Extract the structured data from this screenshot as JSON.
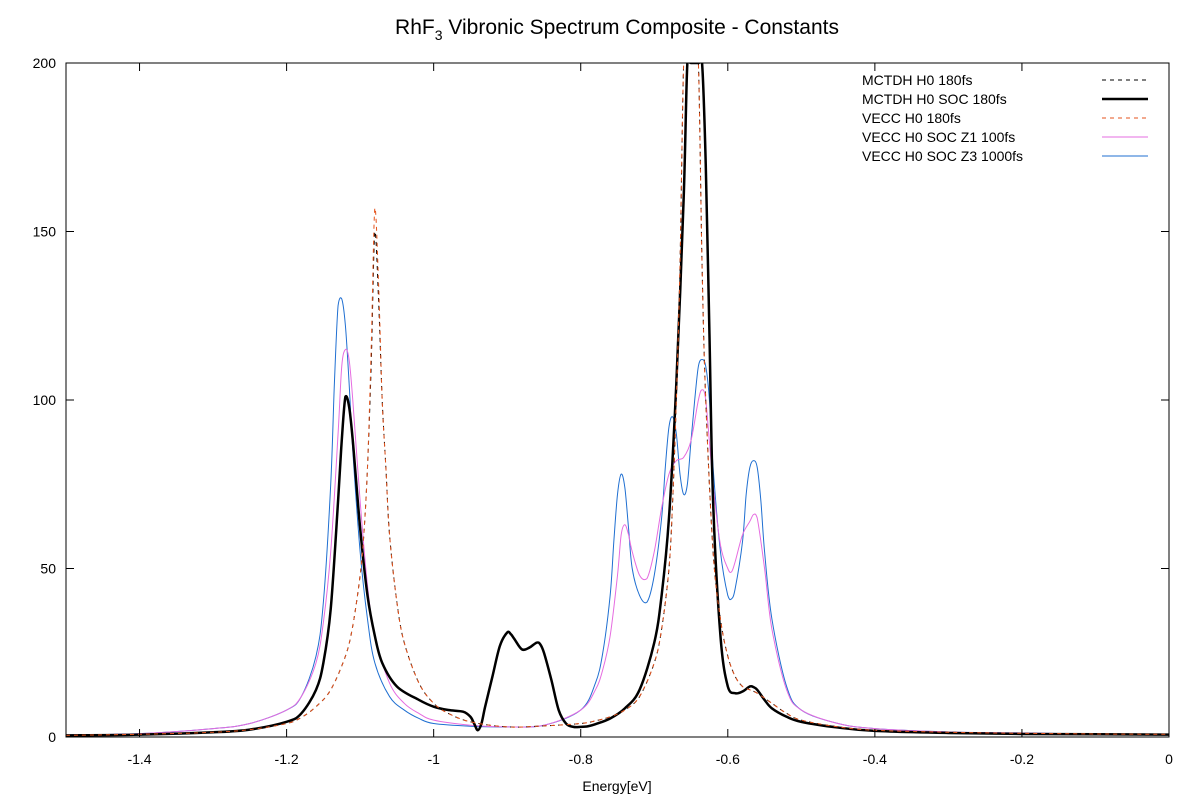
{
  "chart_data": {
    "type": "line",
    "title": "RhF",
    "title_subscript": "3",
    "title_suffix": " Vibronic Spectrum Composite - Constants",
    "xlabel": "Energy[eV]",
    "ylabel": "",
    "xlim": [
      -1.5,
      0
    ],
    "ylim": [
      0,
      200
    ],
    "x_ticks": [
      -1.4,
      -1.2,
      -1,
      -0.8,
      -0.6,
      -0.4,
      -0.2,
      0
    ],
    "x_tick_labels": [
      "-1.4",
      "-1.2",
      "-1",
      "-0.8",
      "-0.6",
      "-0.4",
      "-0.2",
      "0"
    ],
    "y_ticks": [
      0,
      50,
      100,
      150,
      200
    ],
    "y_tick_labels": [
      "0",
      "50",
      "100",
      "150",
      "200"
    ],
    "grid": false,
    "legend_position": "top-right",
    "baseline_dotted_at": 0,
    "series": [
      {
        "name": "MCTDH H0 180fs",
        "color": "#000000",
        "dash": "dashed",
        "width": "thin",
        "x": [
          -1.5,
          -1.4,
          -1.3,
          -1.25,
          -1.2,
          -1.18,
          -1.16,
          -1.14,
          -1.12,
          -1.11,
          -1.1,
          -1.095,
          -1.09,
          -1.085,
          -1.08,
          -1.075,
          -1.07,
          -1.065,
          -1.06,
          -1.05,
          -1.04,
          -1.02,
          -1.0,
          -0.98,
          -0.95,
          -0.9,
          -0.85,
          -0.8,
          -0.78,
          -0.76,
          -0.74,
          -0.72,
          -0.7,
          -0.69,
          -0.68,
          -0.675,
          -0.67,
          -0.665,
          -0.66,
          -0.655,
          -0.65,
          -0.645,
          -0.64,
          -0.635,
          -0.63,
          -0.62,
          -0.61,
          -0.6,
          -0.59,
          -0.58,
          -0.57,
          -0.56,
          -0.54,
          -0.52,
          -0.5,
          -0.45,
          -0.4,
          -0.3,
          -0.2,
          -0.1,
          0
        ],
        "y": [
          0.5,
          0.8,
          1.4,
          2.2,
          4,
          5.8,
          9,
          14,
          24,
          33,
          48,
          60,
          80,
          110,
          150,
          130,
          100,
          80,
          60,
          40,
          28,
          16,
          10,
          7,
          4.5,
          3,
          3.3,
          4,
          4.8,
          6,
          8,
          12,
          22,
          32,
          50,
          70,
          100,
          140,
          200,
          200,
          200,
          200,
          200,
          140,
          100,
          55,
          35,
          24,
          18,
          15,
          14,
          13,
          10,
          7,
          5,
          3,
          2,
          1.4,
          1.1,
          0.9,
          0.8
        ]
      },
      {
        "name": "MCTDH H0 SOC 180fs",
        "color": "#000000",
        "dash": "solid",
        "width": "thick",
        "x": [
          -1.5,
          -1.4,
          -1.3,
          -1.25,
          -1.2,
          -1.18,
          -1.16,
          -1.15,
          -1.14,
          -1.13,
          -1.125,
          -1.12,
          -1.115,
          -1.11,
          -1.1,
          -1.09,
          -1.08,
          -1.07,
          -1.05,
          -1.02,
          -1.0,
          -0.98,
          -0.96,
          -0.95,
          -0.945,
          -0.94,
          -0.935,
          -0.93,
          -0.92,
          -0.91,
          -0.9,
          -0.895,
          -0.89,
          -0.88,
          -0.87,
          -0.86,
          -0.855,
          -0.85,
          -0.84,
          -0.83,
          -0.82,
          -0.81,
          -0.8,
          -0.79,
          -0.78,
          -0.76,
          -0.74,
          -0.72,
          -0.7,
          -0.69,
          -0.68,
          -0.67,
          -0.66,
          -0.655,
          -0.65,
          -0.645,
          -0.64,
          -0.635,
          -0.63,
          -0.625,
          -0.62,
          -0.61,
          -0.6,
          -0.59,
          -0.58,
          -0.57,
          -0.565,
          -0.56,
          -0.55,
          -0.54,
          -0.52,
          -0.5,
          -0.45,
          -0.4,
          -0.3,
          -0.2,
          -0.1,
          0
        ],
        "y": [
          0.5,
          0.7,
          1.4,
          2.2,
          4.5,
          7,
          14,
          22,
          38,
          70,
          88,
          101,
          98,
          88,
          62,
          42,
          30,
          22,
          15,
          11,
          9,
          8,
          7.5,
          6,
          4,
          2,
          4,
          9,
          18,
          27,
          31,
          30.5,
          29,
          26,
          26.5,
          28,
          27.5,
          25,
          17,
          8,
          4,
          3,
          3,
          3.2,
          3.8,
          5.5,
          8.5,
          14,
          28,
          42,
          65,
          105,
          160,
          200,
          200,
          200,
          200,
          200,
          170,
          120,
          70,
          30,
          15,
          13,
          13.5,
          15,
          14.8,
          14,
          11,
          8.5,
          6,
          4.5,
          2.8,
          1.8,
          1.2,
          0.9,
          0.8,
          0.7
        ]
      },
      {
        "name": "VECC    H0 180fs",
        "color": "#e4531c",
        "dash": "dashed",
        "width": "thin",
        "x": [
          -1.5,
          -1.4,
          -1.3,
          -1.25,
          -1.2,
          -1.18,
          -1.16,
          -1.14,
          -1.12,
          -1.11,
          -1.1,
          -1.095,
          -1.09,
          -1.085,
          -1.08,
          -1.075,
          -1.07,
          -1.065,
          -1.06,
          -1.05,
          -1.04,
          -1.02,
          -1.0,
          -0.98,
          -0.95,
          -0.9,
          -0.85,
          -0.8,
          -0.78,
          -0.76,
          -0.74,
          -0.72,
          -0.7,
          -0.69,
          -0.68,
          -0.675,
          -0.67,
          -0.665,
          -0.66,
          -0.655,
          -0.65,
          -0.645,
          -0.64,
          -0.635,
          -0.63,
          -0.62,
          -0.61,
          -0.6,
          -0.59,
          -0.58,
          -0.57,
          -0.56,
          -0.54,
          -0.52,
          -0.5,
          -0.45,
          -0.4,
          -0.3,
          -0.2,
          -0.1,
          0
        ],
        "y": [
          0.5,
          0.8,
          1.4,
          2.2,
          4,
          5.8,
          9,
          14,
          24,
          33,
          48,
          60,
          80,
          115,
          157,
          135,
          100,
          80,
          60,
          40,
          28,
          16,
          10,
          7,
          4.5,
          3,
          3.3,
          4,
          4.8,
          6,
          8,
          12,
          22,
          32,
          50,
          70,
          100,
          140,
          200,
          200,
          200,
          200,
          200,
          140,
          100,
          55,
          35,
          24,
          18,
          15,
          14,
          13,
          10,
          7,
          5,
          3,
          2,
          1.4,
          1.1,
          0.9,
          0.8
        ]
      },
      {
        "name": "VECC    H0 SOC Z1 100fs",
        "color": "#e66ce0",
        "dash": "solid",
        "width": "thin",
        "x": [
          -1.5,
          -1.4,
          -1.3,
          -1.25,
          -1.2,
          -1.18,
          -1.16,
          -1.15,
          -1.14,
          -1.13,
          -1.125,
          -1.12,
          -1.115,
          -1.11,
          -1.1,
          -1.09,
          -1.08,
          -1.06,
          -1.04,
          -1.02,
          -1.0,
          -0.95,
          -0.9,
          -0.85,
          -0.8,
          -0.78,
          -0.77,
          -0.76,
          -0.75,
          -0.745,
          -0.74,
          -0.735,
          -0.73,
          -0.72,
          -0.71,
          -0.7,
          -0.69,
          -0.68,
          -0.67,
          -0.66,
          -0.65,
          -0.64,
          -0.635,
          -0.63,
          -0.62,
          -0.61,
          -0.6,
          -0.595,
          -0.59,
          -0.58,
          -0.57,
          -0.565,
          -0.56,
          -0.55,
          -0.54,
          -0.52,
          -0.5,
          -0.45,
          -0.4,
          -0.3,
          -0.2,
          -0.1,
          0
        ],
        "y": [
          0.6,
          1,
          2.5,
          4,
          8,
          12,
          22,
          34,
          55,
          90,
          110,
          115,
          112,
          100,
          70,
          45,
          30,
          16,
          10,
          7,
          5,
          3.5,
          3,
          3.5,
          8,
          14,
          20,
          30,
          48,
          60,
          63,
          60,
          55,
          48,
          47,
          55,
          68,
          78,
          82,
          83,
          88,
          100,
          103,
          100,
          75,
          57,
          50,
          49,
          52,
          60,
          64,
          66,
          65,
          50,
          32,
          14,
          8,
          4,
          2.5,
          1.5,
          1.2,
          0.9,
          0.8
        ]
      },
      {
        "name": "VECC    H0 SOC Z3 1000fs",
        "color": "#1f6fd1",
        "dash": "solid",
        "width": "thin",
        "x": [
          -1.5,
          -1.4,
          -1.3,
          -1.25,
          -1.2,
          -1.18,
          -1.16,
          -1.15,
          -1.14,
          -1.135,
          -1.13,
          -1.125,
          -1.12,
          -1.115,
          -1.11,
          -1.1,
          -1.09,
          -1.08,
          -1.06,
          -1.04,
          -1.02,
          -1.0,
          -0.95,
          -0.9,
          -0.85,
          -0.8,
          -0.78,
          -0.77,
          -0.76,
          -0.755,
          -0.75,
          -0.745,
          -0.74,
          -0.735,
          -0.73,
          -0.72,
          -0.71,
          -0.7,
          -0.69,
          -0.685,
          -0.68,
          -0.675,
          -0.67,
          -0.665,
          -0.66,
          -0.655,
          -0.65,
          -0.645,
          -0.64,
          -0.635,
          -0.63,
          -0.625,
          -0.62,
          -0.61,
          -0.6,
          -0.595,
          -0.59,
          -0.58,
          -0.575,
          -0.57,
          -0.565,
          -0.56,
          -0.555,
          -0.55,
          -0.54,
          -0.52,
          -0.5,
          -0.45,
          -0.4,
          -0.3,
          -0.2,
          -0.1,
          0
        ],
        "y": [
          0.6,
          1,
          2.5,
          4,
          8,
          12,
          24,
          40,
          75,
          105,
          128,
          130,
          122,
          105,
          85,
          55,
          35,
          22,
          12,
          8,
          5.5,
          4,
          3.2,
          3,
          3.5,
          8,
          16,
          25,
          42,
          58,
          72,
          78,
          74,
          62,
          50,
          42,
          40,
          48,
          65,
          80,
          92,
          95,
          90,
          78,
          72,
          75,
          88,
          100,
          110,
          112,
          110,
          100,
          80,
          55,
          42,
          41,
          44,
          58,
          72,
          80,
          82,
          80,
          70,
          55,
          35,
          15,
          8,
          4,
          2.5,
          1.5,
          1.2,
          0.9,
          0.8
        ]
      }
    ]
  }
}
